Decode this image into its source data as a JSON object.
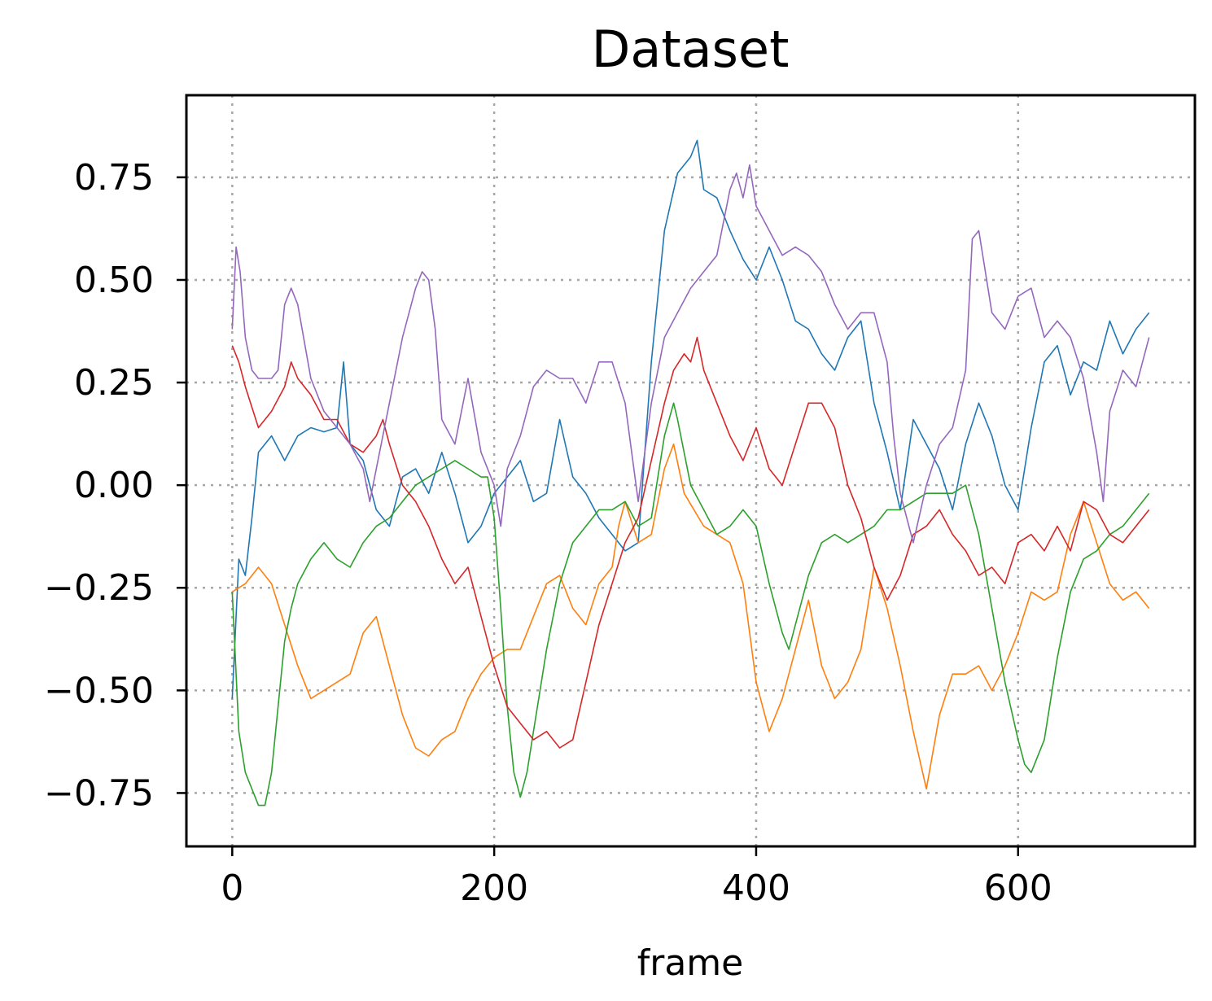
{
  "chart_data": {
    "type": "line",
    "title": "Dataset",
    "xlabel": "frame",
    "ylabel": "",
    "xlim": [
      -35,
      735
    ],
    "ylim": [
      -0.88,
      0.95
    ],
    "xticks": [
      0,
      200,
      400,
      600
    ],
    "xtick_labels": [
      "0",
      "200",
      "400",
      "600"
    ],
    "yticks": [
      0.75,
      0.5,
      0.25,
      0.0,
      -0.25,
      -0.5,
      -0.75
    ],
    "ytick_labels": [
      "0.75",
      "0.50",
      "0.25",
      "0.00",
      "−0.25",
      "−0.50",
      "−0.75"
    ],
    "grid": true,
    "legend": "none",
    "series": [
      {
        "color": "#1f77b4",
        "x": [
          0,
          5,
          10,
          15,
          20,
          30,
          40,
          50,
          60,
          70,
          80,
          85,
          90,
          100,
          110,
          120,
          130,
          140,
          150,
          160,
          170,
          180,
          190,
          200,
          210,
          220,
          230,
          240,
          250,
          260,
          270,
          280,
          290,
          300,
          310,
          320,
          330,
          340,
          350,
          355,
          360,
          370,
          380,
          390,
          400,
          410,
          420,
          430,
          440,
          450,
          460,
          470,
          480,
          490,
          500,
          510,
          520,
          530,
          540,
          550,
          560,
          570,
          580,
          590,
          600,
          610,
          620,
          630,
          640,
          650,
          660,
          670,
          680,
          690,
          700
        ],
        "y": [
          -0.52,
          -0.18,
          -0.22,
          -0.08,
          0.08,
          0.12,
          0.06,
          0.12,
          0.14,
          0.13,
          0.14,
          0.3,
          0.1,
          0.06,
          -0.06,
          -0.1,
          0.02,
          0.04,
          -0.02,
          0.08,
          -0.02,
          -0.14,
          -0.1,
          -0.02,
          0.02,
          0.06,
          -0.04,
          -0.02,
          0.16,
          0.02,
          -0.02,
          -0.08,
          -0.12,
          -0.16,
          -0.14,
          0.3,
          0.62,
          0.76,
          0.8,
          0.84,
          0.72,
          0.7,
          0.62,
          0.55,
          0.5,
          0.58,
          0.5,
          0.4,
          0.38,
          0.32,
          0.28,
          0.36,
          0.4,
          0.2,
          0.08,
          -0.06,
          0.16,
          0.1,
          0.04,
          -0.06,
          0.1,
          0.2,
          0.12,
          0.0,
          -0.06,
          0.14,
          0.3,
          0.34,
          0.22,
          0.3,
          0.28,
          0.4,
          0.32,
          0.38,
          0.42
        ]
      },
      {
        "color": "#ff7f0e",
        "x": [
          0,
          10,
          15,
          20,
          30,
          40,
          50,
          60,
          70,
          80,
          90,
          100,
          110,
          120,
          130,
          140,
          150,
          160,
          170,
          180,
          190,
          200,
          210,
          220,
          230,
          240,
          250,
          260,
          270,
          280,
          290,
          295,
          300,
          310,
          320,
          330,
          337,
          345,
          360,
          380,
          390,
          400,
          410,
          420,
          430,
          440,
          450,
          460,
          470,
          480,
          490,
          500,
          510,
          520,
          530,
          540,
          550,
          560,
          570,
          580,
          590,
          600,
          610,
          620,
          630,
          640,
          650,
          660,
          670,
          680,
          690,
          700
        ],
        "y": [
          -0.26,
          -0.24,
          -0.22,
          -0.2,
          -0.24,
          -0.34,
          -0.44,
          -0.52,
          -0.5,
          -0.48,
          -0.46,
          -0.36,
          -0.32,
          -0.44,
          -0.56,
          -0.64,
          -0.66,
          -0.62,
          -0.6,
          -0.52,
          -0.46,
          -0.42,
          -0.4,
          -0.4,
          -0.32,
          -0.24,
          -0.22,
          -0.3,
          -0.34,
          -0.24,
          -0.2,
          -0.1,
          -0.04,
          -0.14,
          -0.12,
          0.04,
          0.1,
          -0.02,
          -0.1,
          -0.14,
          -0.24,
          -0.48,
          -0.6,
          -0.52,
          -0.4,
          -0.28,
          -0.44,
          -0.52,
          -0.48,
          -0.4,
          -0.2,
          -0.3,
          -0.44,
          -0.6,
          -0.74,
          -0.56,
          -0.46,
          -0.46,
          -0.44,
          -0.5,
          -0.44,
          -0.36,
          -0.26,
          -0.28,
          -0.26,
          -0.12,
          -0.04,
          -0.14,
          -0.24,
          -0.28,
          -0.26,
          -0.3
        ]
      },
      {
        "color": "#2ca02c",
        "x": [
          0,
          5,
          10,
          15,
          20,
          25,
          30,
          35,
          40,
          45,
          50,
          60,
          70,
          80,
          90,
          100,
          110,
          120,
          130,
          140,
          150,
          160,
          170,
          180,
          190,
          195,
          200,
          205,
          210,
          215,
          220,
          225,
          230,
          240,
          250,
          260,
          270,
          280,
          290,
          300,
          310,
          320,
          330,
          337,
          340,
          350,
          360,
          370,
          380,
          390,
          400,
          410,
          420,
          425,
          430,
          440,
          450,
          460,
          470,
          480,
          490,
          500,
          510,
          520,
          530,
          540,
          550,
          560,
          570,
          580,
          590,
          600,
          605,
          610,
          620,
          630,
          640,
          650,
          660,
          670,
          680,
          690,
          700
        ],
        "y": [
          -0.26,
          -0.6,
          -0.7,
          -0.74,
          -0.78,
          -0.78,
          -0.7,
          -0.54,
          -0.38,
          -0.3,
          -0.24,
          -0.18,
          -0.14,
          -0.18,
          -0.2,
          -0.14,
          -0.1,
          -0.08,
          -0.04,
          0.0,
          0.02,
          0.04,
          0.06,
          0.04,
          0.02,
          0.02,
          -0.08,
          -0.3,
          -0.54,
          -0.7,
          -0.76,
          -0.7,
          -0.6,
          -0.4,
          -0.24,
          -0.14,
          -0.1,
          -0.06,
          -0.06,
          -0.04,
          -0.1,
          -0.08,
          0.12,
          0.2,
          0.16,
          0.0,
          -0.06,
          -0.12,
          -0.1,
          -0.06,
          -0.1,
          -0.24,
          -0.36,
          -0.4,
          -0.34,
          -0.22,
          -0.14,
          -0.12,
          -0.14,
          -0.12,
          -0.1,
          -0.06,
          -0.06,
          -0.04,
          -0.02,
          -0.02,
          -0.02,
          0.0,
          -0.12,
          -0.3,
          -0.48,
          -0.62,
          -0.68,
          -0.7,
          -0.62,
          -0.42,
          -0.26,
          -0.18,
          -0.16,
          -0.12,
          -0.1,
          -0.06,
          -0.02
        ]
      },
      {
        "color": "#d62728",
        "x": [
          0,
          5,
          10,
          20,
          30,
          40,
          45,
          50,
          60,
          70,
          80,
          90,
          100,
          110,
          115,
          120,
          130,
          140,
          150,
          160,
          170,
          180,
          190,
          200,
          210,
          220,
          230,
          240,
          250,
          260,
          270,
          280,
          290,
          300,
          310,
          320,
          330,
          337,
          345,
          350,
          355,
          360,
          370,
          380,
          390,
          400,
          410,
          420,
          430,
          440,
          450,
          460,
          470,
          480,
          490,
          500,
          510,
          520,
          530,
          540,
          550,
          560,
          570,
          580,
          590,
          600,
          610,
          620,
          630,
          640,
          650,
          660,
          670,
          680,
          690,
          700
        ],
        "y": [
          0.34,
          0.3,
          0.24,
          0.14,
          0.18,
          0.24,
          0.3,
          0.26,
          0.22,
          0.16,
          0.16,
          0.1,
          0.08,
          0.12,
          0.16,
          0.1,
          0.0,
          -0.04,
          -0.1,
          -0.18,
          -0.24,
          -0.2,
          -0.32,
          -0.44,
          -0.54,
          -0.58,
          -0.62,
          -0.6,
          -0.64,
          -0.62,
          -0.48,
          -0.34,
          -0.24,
          -0.14,
          -0.08,
          0.06,
          0.2,
          0.28,
          0.32,
          0.3,
          0.36,
          0.28,
          0.2,
          0.12,
          0.06,
          0.14,
          0.04,
          0.0,
          0.1,
          0.2,
          0.2,
          0.14,
          0.0,
          -0.08,
          -0.2,
          -0.28,
          -0.22,
          -0.12,
          -0.1,
          -0.06,
          -0.12,
          -0.16,
          -0.22,
          -0.2,
          -0.24,
          -0.14,
          -0.12,
          -0.16,
          -0.1,
          -0.16,
          -0.04,
          -0.06,
          -0.12,
          -0.14,
          -0.1,
          -0.06
        ]
      },
      {
        "color": "#9467bd",
        "x": [
          0,
          3,
          6,
          10,
          15,
          20,
          30,
          35,
          40,
          45,
          50,
          60,
          70,
          80,
          90,
          100,
          105,
          110,
          120,
          130,
          140,
          145,
          150,
          155,
          160,
          170,
          180,
          190,
          200,
          205,
          210,
          220,
          230,
          240,
          250,
          260,
          270,
          280,
          290,
          300,
          310,
          320,
          330,
          340,
          350,
          360,
          370,
          380,
          385,
          390,
          395,
          400,
          410,
          420,
          430,
          440,
          450,
          460,
          470,
          480,
          490,
          500,
          505,
          510,
          520,
          530,
          540,
          550,
          560,
          565,
          570,
          580,
          590,
          600,
          610,
          620,
          630,
          640,
          650,
          660,
          665,
          670,
          680,
          690,
          700
        ],
        "y": [
          0.38,
          0.58,
          0.52,
          0.36,
          0.28,
          0.26,
          0.26,
          0.28,
          0.44,
          0.48,
          0.44,
          0.26,
          0.18,
          0.14,
          0.1,
          0.04,
          -0.04,
          0.04,
          0.2,
          0.36,
          0.48,
          0.52,
          0.5,
          0.38,
          0.16,
          0.1,
          0.26,
          0.08,
          0.0,
          -0.1,
          0.04,
          0.12,
          0.24,
          0.28,
          0.26,
          0.26,
          0.2,
          0.3,
          0.3,
          0.2,
          -0.04,
          0.2,
          0.36,
          0.42,
          0.48,
          0.52,
          0.56,
          0.72,
          0.76,
          0.7,
          0.78,
          0.68,
          0.62,
          0.56,
          0.58,
          0.56,
          0.52,
          0.44,
          0.38,
          0.42,
          0.42,
          0.3,
          0.12,
          -0.02,
          -0.14,
          0.0,
          0.1,
          0.14,
          0.28,
          0.6,
          0.62,
          0.42,
          0.38,
          0.46,
          0.48,
          0.36,
          0.4,
          0.36,
          0.26,
          0.08,
          -0.04,
          0.18,
          0.28,
          0.24,
          0.36
        ]
      }
    ]
  }
}
